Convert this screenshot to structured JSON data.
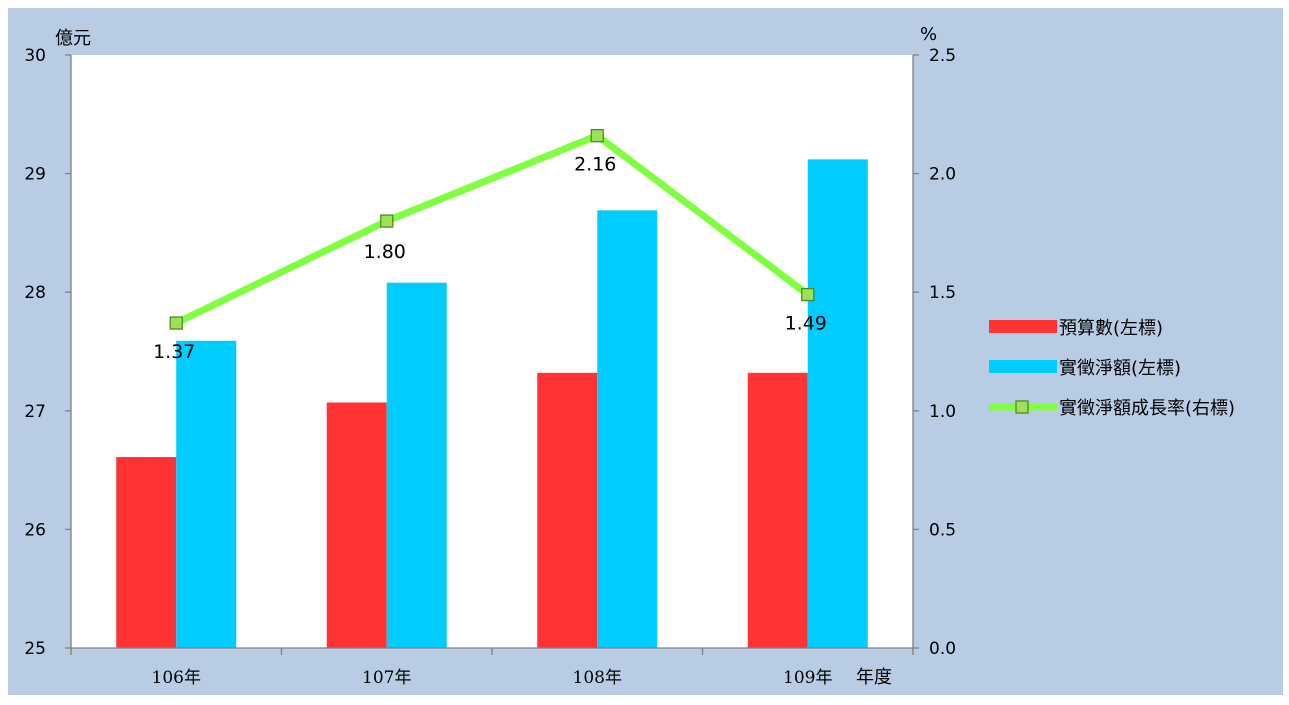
{
  "colors": {
    "background": "#b8cce4",
    "plot_area": "#ffffff",
    "budget": "#ff3333",
    "actual": "#00ccff",
    "growth_line": "#80ff40",
    "growth_marker": "#9ee05a",
    "growth_marker_border": "#4f8a1e",
    "axis": "#808080"
  },
  "chart_data": {
    "type": "bar",
    "categories": [
      "106年",
      "107年",
      "108年",
      "109年"
    ],
    "xlabel": "年度",
    "ylabel": "億元",
    "y2label": "%",
    "ylim": [
      25,
      30
    ],
    "y2lim": [
      0,
      2.5
    ],
    "yticks": [
      "25",
      "26",
      "27",
      "28",
      "29",
      "30"
    ],
    "y2ticks": [
      "0.0",
      "0.5",
      "1.0",
      "1.5",
      "2.0",
      "2.5"
    ],
    "series": [
      {
        "name": "預算數(左標)",
        "type": "bar",
        "axis": "left",
        "values": [
          26.61,
          27.07,
          27.32,
          27.32
        ]
      },
      {
        "name": "實徵淨額(左標)",
        "type": "bar",
        "axis": "left",
        "values": [
          27.59,
          28.08,
          28.69,
          29.12
        ]
      },
      {
        "name": "實徵淨額成長率(右標)",
        "type": "line",
        "axis": "right",
        "values": [
          1.37,
          1.8,
          2.16,
          1.49
        ],
        "labels": [
          "1.37",
          "1.80",
          "2.16",
          "1.49"
        ]
      }
    ],
    "legend": "right",
    "grid": false
  }
}
